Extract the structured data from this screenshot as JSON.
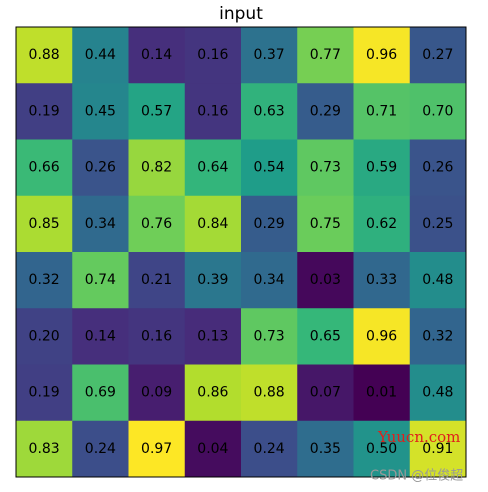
{
  "chart_data": {
    "type": "heatmap",
    "title": "input",
    "z": [
      [
        0.88,
        0.44,
        0.14,
        0.16,
        0.37,
        0.77,
        0.96,
        0.27
      ],
      [
        0.19,
        0.45,
        0.57,
        0.16,
        0.63,
        0.29,
        0.71,
        0.7
      ],
      [
        0.66,
        0.26,
        0.82,
        0.64,
        0.54,
        0.73,
        0.59,
        0.26
      ],
      [
        0.85,
        0.34,
        0.76,
        0.84,
        0.29,
        0.75,
        0.62,
        0.25
      ],
      [
        0.32,
        0.74,
        0.21,
        0.39,
        0.34,
        0.03,
        0.33,
        0.48
      ],
      [
        0.2,
        0.14,
        0.16,
        0.13,
        0.73,
        0.65,
        0.96,
        0.32
      ],
      [
        0.19,
        0.69,
        0.09,
        0.86,
        0.88,
        0.07,
        0.01,
        0.48
      ],
      [
        0.83,
        0.24,
        0.97,
        0.04,
        0.24,
        0.35,
        0.5,
        0.91
      ]
    ],
    "value_labels": [
      [
        "0.88",
        "0.44",
        "0.14",
        "0.16",
        "0.37",
        "0.77",
        "0.96",
        "0.27"
      ],
      [
        "0.19",
        "0.45",
        "0.57",
        "0.16",
        "0.63",
        "0.29",
        "0.71",
        "0.70"
      ],
      [
        "0.66",
        "0.26",
        "0.82",
        "0.64",
        "0.54",
        "0.73",
        "0.59",
        "0.26"
      ],
      [
        "0.85",
        "0.34",
        "0.76",
        "0.84",
        "0.29",
        "0.75",
        "0.62",
        "0.25"
      ],
      [
        "0.32",
        "0.74",
        "0.21",
        "0.39",
        "0.34",
        "0.03",
        "0.33",
        "0.48"
      ],
      [
        "0.20",
        "0.14",
        "0.16",
        "0.13",
        "0.73",
        "0.65",
        "0.96",
        "0.32"
      ],
      [
        "0.19",
        "0.69",
        "0.09",
        "0.86",
        "0.88",
        "0.07",
        "0.01",
        "0.48"
      ],
      [
        "0.83",
        "0.24",
        "0.97",
        "0.04",
        "0.24",
        "0.35",
        "0.50",
        "0.91"
      ]
    ],
    "colormap": "viridis",
    "annotations": [
      "Yuucn.com",
      "CSDN @位俊超"
    ]
  }
}
